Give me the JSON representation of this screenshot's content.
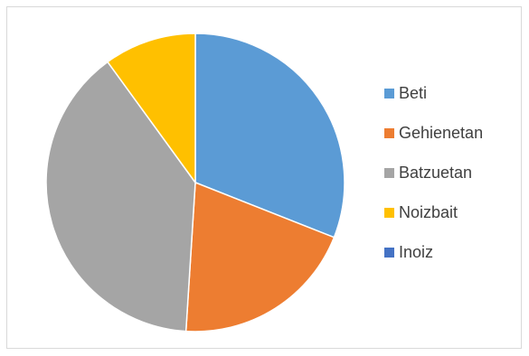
{
  "chart_data": {
    "type": "pie",
    "categories": [
      "Beti",
      "Gehienetan",
      "Batzuetan",
      "Noizbait",
      "Inoiz"
    ],
    "values": [
      31,
      20,
      39,
      10,
      0
    ],
    "colors": [
      "#5b9bd5",
      "#ed7d31",
      "#a5a5a5",
      "#ffc000",
      "#4472c4"
    ],
    "legend_position": "right",
    "start_angle": "top",
    "direction": "clockwise",
    "slice_border_color": "#ffffff"
  }
}
